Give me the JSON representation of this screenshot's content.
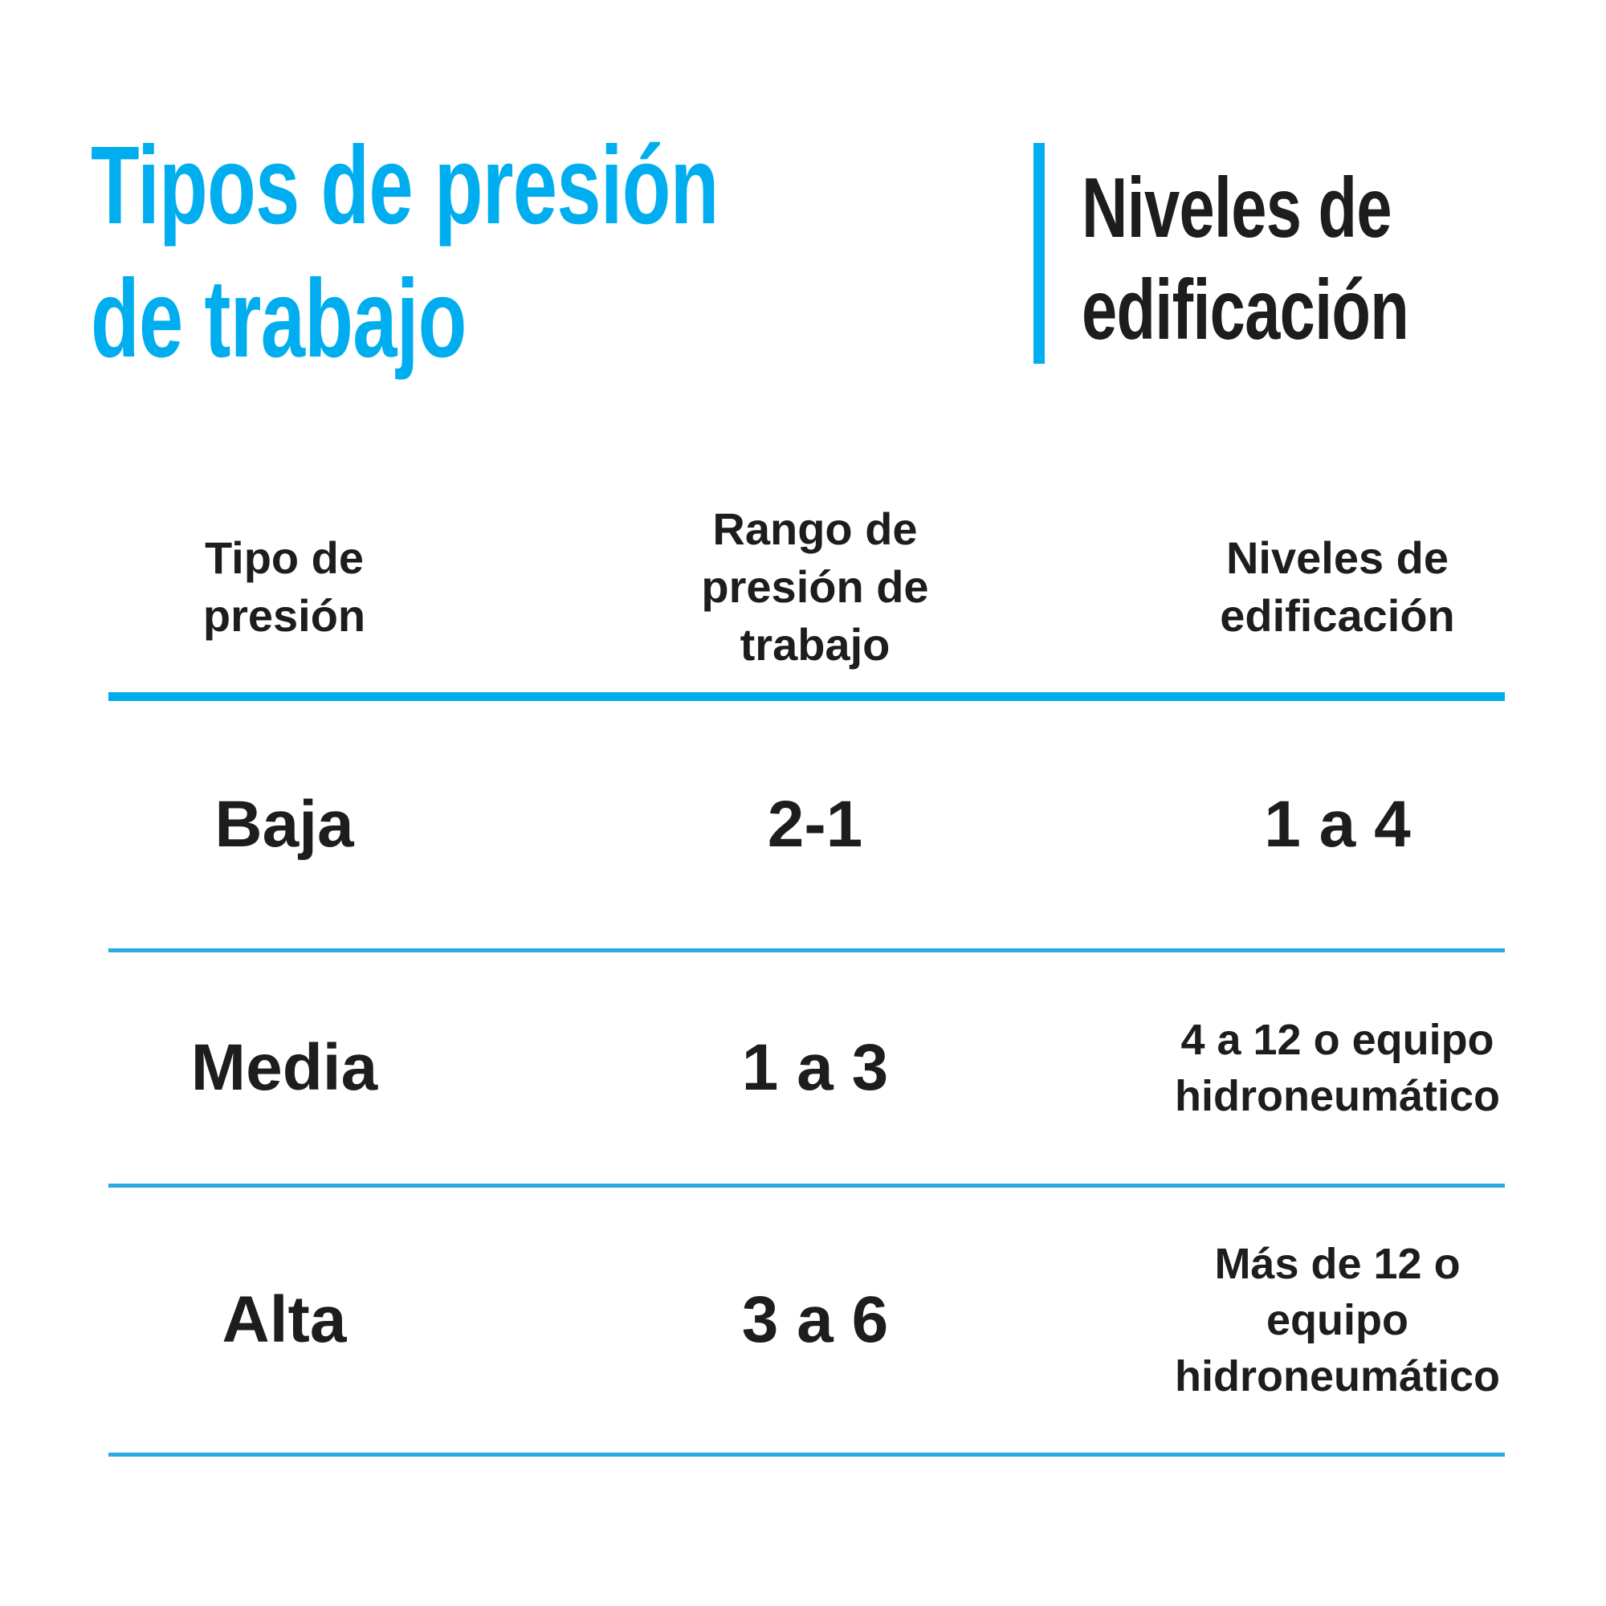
{
  "page": {
    "background": "#FFFFFF",
    "accent_color": "#00AEEF",
    "separator_color": "#29ABE2",
    "text_color": "#1D1D1B"
  },
  "header": {
    "title_left": "Tipos de presión\nde trabajo",
    "title_right": "Niveles de\nedificación"
  },
  "table": {
    "headers": {
      "col1": "Tipo de\npresión",
      "col2": "Rango de\npresión de\ntrabajo",
      "col3": "Niveles de\nedificación"
    },
    "rows": [
      {
        "type": "Baja",
        "range": "2-1",
        "levels": "1 a 4"
      },
      {
        "type": "Media",
        "range": "1 a 3",
        "levels": "4 a 12 o equipo\nhidroneumático"
      },
      {
        "type": "Alta",
        "range": "3 a 6",
        "levels": "Más de 12 o\nequipo\nhidroneumático"
      }
    ]
  },
  "chart_data": {
    "type": "table",
    "title": "Tipos de presión de trabajo | Niveles de edificación",
    "columns": [
      "Tipo de presión",
      "Rango de presión de trabajo",
      "Niveles de edificación"
    ],
    "rows": [
      [
        "Baja",
        "2-1",
        "1 a 4"
      ],
      [
        "Media",
        "1 a 3",
        "4 a 12 o equipo hidroneumático"
      ],
      [
        "Alta",
        "3 a 6",
        "Más de 12 o equipo hidroneumático"
      ]
    ]
  }
}
